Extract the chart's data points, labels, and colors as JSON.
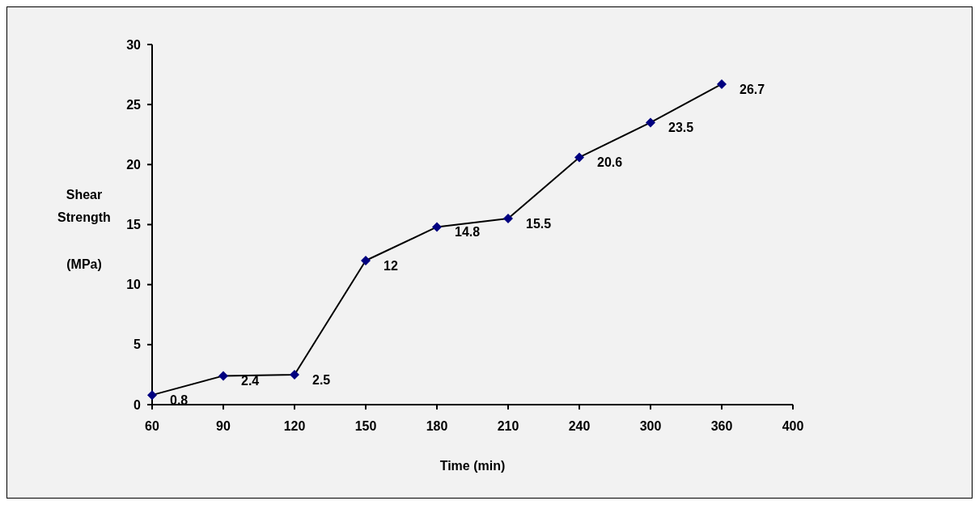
{
  "chart_data": {
    "type": "line",
    "xlabel": "Time (min)",
    "ylabel": "Shear Strength (MPa)",
    "categories": [
      "60",
      "90",
      "120",
      "150",
      "180",
      "210",
      "240",
      "300",
      "360",
      "400"
    ],
    "series": [
      {
        "color": "#000080",
        "values": [
          0.8,
          2.4,
          2.5,
          12,
          14.8,
          15.5,
          20.6,
          23.5,
          26.7,
          null
        ]
      }
    ],
    "ylim": [
      0,
      30
    ],
    "yticks": [
      0,
      5,
      10,
      15,
      20,
      25,
      30
    ],
    "grid": false,
    "marker": "diamond",
    "line_style": "solid",
    "data_labels": true
  }
}
